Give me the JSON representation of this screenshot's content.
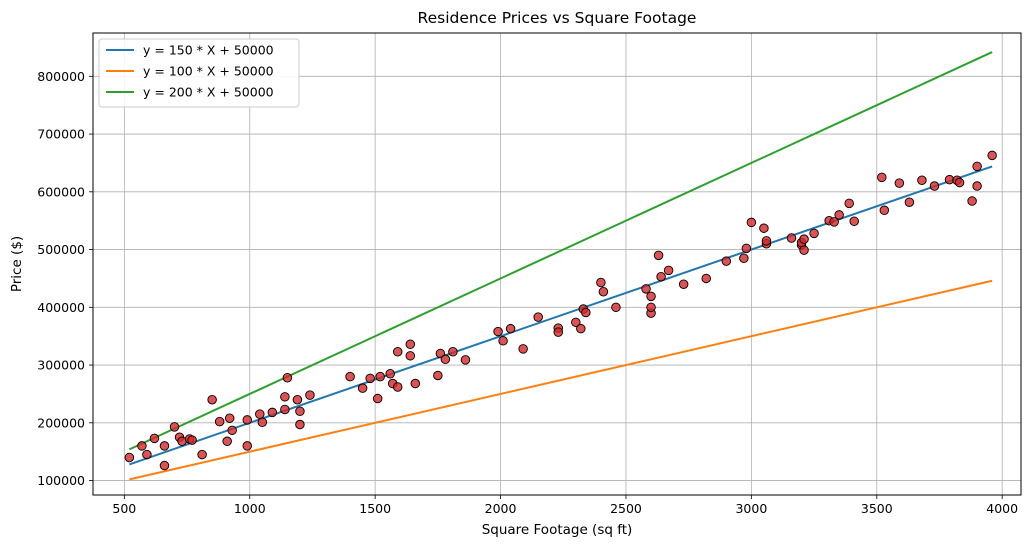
{
  "chart_data": {
    "type": "scatter",
    "title": "Residence Prices vs Square Footage",
    "xlabel": "Square Footage (sq ft)",
    "ylabel": "Price ($)",
    "xlim": [
      375,
      4075
    ],
    "ylim": [
      75000,
      875000
    ],
    "xticks": [
      500,
      1000,
      1500,
      2000,
      2500,
      3000,
      3500,
      4000
    ],
    "yticks": [
      100000,
      200000,
      300000,
      400000,
      500000,
      600000,
      700000,
      800000
    ],
    "grid": true,
    "legend_position": "top-left",
    "scatter_points": {
      "color": "#d62728",
      "edge_color": "#000000",
      "points": [
        [
          520,
          140000
        ],
        [
          570,
          160000
        ],
        [
          590,
          145000
        ],
        [
          620,
          173000
        ],
        [
          660,
          160000
        ],
        [
          660,
          126000
        ],
        [
          700,
          193000
        ],
        [
          720,
          175000
        ],
        [
          730,
          168000
        ],
        [
          760,
          172000
        ],
        [
          770,
          170000
        ],
        [
          810,
          145000
        ],
        [
          850,
          240000
        ],
        [
          880,
          202000
        ],
        [
          910,
          168000
        ],
        [
          920,
          208000
        ],
        [
          930,
          187000
        ],
        [
          990,
          160000
        ],
        [
          990,
          205000
        ],
        [
          1040,
          215000
        ],
        [
          1050,
          201000
        ],
        [
          1090,
          218000
        ],
        [
          1140,
          223000
        ],
        [
          1140,
          245000
        ],
        [
          1150,
          278000
        ],
        [
          1190,
          240000
        ],
        [
          1200,
          197000
        ],
        [
          1200,
          220000
        ],
        [
          1240,
          248000
        ],
        [
          1400,
          280000
        ],
        [
          1450,
          260000
        ],
        [
          1480,
          277000
        ],
        [
          1510,
          242000
        ],
        [
          1520,
          280000
        ],
        [
          1560,
          285000
        ],
        [
          1570,
          268000
        ],
        [
          1590,
          262000
        ],
        [
          1590,
          323000
        ],
        [
          1640,
          336000
        ],
        [
          1640,
          316000
        ],
        [
          1660,
          268000
        ],
        [
          1750,
          282000
        ],
        [
          1760,
          320000
        ],
        [
          1780,
          310000
        ],
        [
          1810,
          323000
        ],
        [
          1860,
          309000
        ],
        [
          1990,
          358000
        ],
        [
          2010,
          342000
        ],
        [
          2040,
          363000
        ],
        [
          2090,
          328000
        ],
        [
          2150,
          383000
        ],
        [
          2230,
          364000
        ],
        [
          2230,
          357000
        ],
        [
          2300,
          374000
        ],
        [
          2320,
          363000
        ],
        [
          2330,
          397000
        ],
        [
          2340,
          391000
        ],
        [
          2400,
          443000
        ],
        [
          2410,
          427000
        ],
        [
          2460,
          400000
        ],
        [
          2580,
          432000
        ],
        [
          2600,
          390000
        ],
        [
          2600,
          400000
        ],
        [
          2600,
          419000
        ],
        [
          2630,
          490000
        ],
        [
          2640,
          453000
        ],
        [
          2670,
          464000
        ],
        [
          2730,
          440000
        ],
        [
          2820,
          450000
        ],
        [
          2900,
          480000
        ],
        [
          2970,
          485000
        ],
        [
          2980,
          502000
        ],
        [
          3000,
          547000
        ],
        [
          3050,
          537000
        ],
        [
          3060,
          510000
        ],
        [
          3060,
          515000
        ],
        [
          3160,
          520000
        ],
        [
          3200,
          508000
        ],
        [
          3200,
          512000
        ],
        [
          3210,
          518000
        ],
        [
          3210,
          499000
        ],
        [
          3250,
          528000
        ],
        [
          3310,
          550000
        ],
        [
          3330,
          548000
        ],
        [
          3350,
          560000
        ],
        [
          3390,
          580000
        ],
        [
          3410,
          549000
        ],
        [
          3520,
          625000
        ],
        [
          3530,
          568000
        ],
        [
          3590,
          615000
        ],
        [
          3630,
          582000
        ],
        [
          3680,
          620000
        ],
        [
          3730,
          610000
        ],
        [
          3790,
          621000
        ],
        [
          3820,
          620000
        ],
        [
          3830,
          616000
        ],
        [
          3880,
          584000
        ],
        [
          3900,
          610000
        ],
        [
          3900,
          644000
        ],
        [
          3960,
          663000
        ]
      ]
    },
    "series": [
      {
        "name": "y = 150 * X + 50000",
        "color": "#1f77b4",
        "slope": 150,
        "intercept": 50000,
        "x_range": [
          520,
          3960
        ]
      },
      {
        "name": "y = 100 * X + 50000",
        "color": "#ff7f0e",
        "slope": 100,
        "intercept": 50000,
        "x_range": [
          520,
          3960
        ]
      },
      {
        "name": "y = 200 * X + 50000",
        "color": "#2ca02c",
        "slope": 200,
        "intercept": 50000,
        "x_range": [
          520,
          3960
        ]
      }
    ]
  }
}
